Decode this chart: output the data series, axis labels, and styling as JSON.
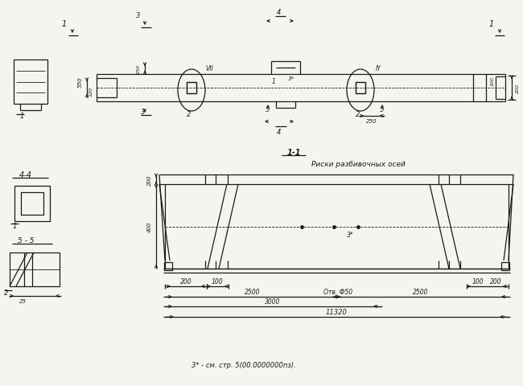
{
  "bg_color": "#f5f5f0",
  "line_color": "#1a1a1a",
  "note": "3* - см. стр. 5(00.0000000пз).",
  "section_44": "4-4",
  "section_11": "1-1",
  "section_55": "5 - 5",
  "label_risks": "Риски разбивочных осей"
}
